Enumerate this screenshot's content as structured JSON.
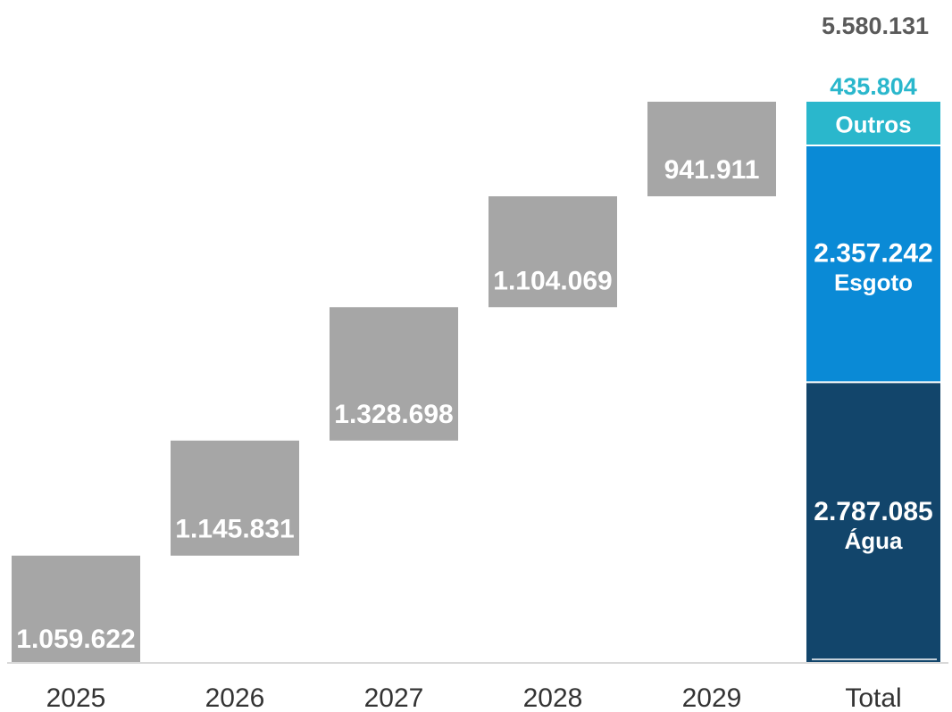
{
  "chart_data": {
    "type": "bar",
    "subtype": "waterfall",
    "categories": [
      "2025",
      "2026",
      "2027",
      "2028",
      "2029"
    ],
    "values": [
      1059622,
      1145831,
      1328698,
      1104069,
      941911
    ],
    "value_labels": [
      "1.059.622",
      "1.145.831",
      "1.328.698",
      "1.104.069",
      "941.911"
    ],
    "total": {
      "category": "Total",
      "value": 5580131,
      "value_label": "5.580.131",
      "segments": [
        {
          "name": "Água",
          "value": 2787085,
          "value_label": "2.787.085",
          "color": "#12456b"
        },
        {
          "name": "Esgoto",
          "value": 2357242,
          "value_label": "2.357.242",
          "color": "#0a8ad6"
        },
        {
          "name": "Outros",
          "value": 435804,
          "value_label": "435.804",
          "color": "#2ab7cc"
        }
      ]
    },
    "bar_color": "#a6a6a6",
    "total_label_color": "#5a5a5a",
    "top_segment_label_color": "#2ab7cc",
    "ylim": [
      0,
      5580131
    ],
    "grid": false,
    "title": "",
    "xlabel": "",
    "ylabel": ""
  }
}
